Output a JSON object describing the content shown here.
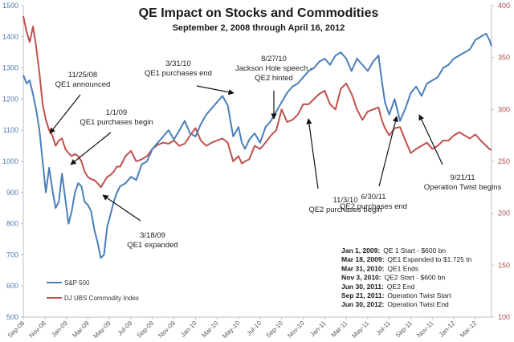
{
  "chart_data": {
    "type": "line",
    "title": "QE Impact on Stocks and Commodities",
    "subtitle": "September 2, 2008 through April 16, 2012",
    "xlabel": "",
    "ylabel_left": "",
    "ylabel_right": "",
    "x_ticks": [
      "Sep-08",
      "Nov-08",
      "Jan-09",
      "Mar-09",
      "May-09",
      "Jul-09",
      "Sep-09",
      "Nov-09",
      "Jan-10",
      "Mar-10",
      "May-10",
      "Jul-10",
      "Sep-10",
      "Nov-10",
      "Jan-11",
      "Mar-11",
      "May-11",
      "Jul-11",
      "Sep-11",
      "Nov-11",
      "Jan-12",
      "Mar-12"
    ],
    "x_range_months": [
      0,
      43.5
    ],
    "y_left": {
      "range": [
        500,
        1500
      ],
      "ticks": [
        500,
        600,
        700,
        800,
        900,
        1000,
        1100,
        1200,
        1300,
        1400,
        1500
      ]
    },
    "y_right": {
      "range": [
        100,
        400
      ],
      "ticks": [
        100,
        150,
        200,
        250,
        300,
        350,
        400
      ]
    },
    "grid": false,
    "legend_position": "bottom-left",
    "series": [
      {
        "name": "S&P 500",
        "axis": "left",
        "color": "#4a7ebb",
        "x_months": [
          0,
          0.3,
          0.6,
          0.9,
          1.2,
          1.5,
          1.8,
          2.1,
          2.4,
          2.7,
          3.0,
          3.3,
          3.6,
          3.9,
          4.2,
          4.5,
          4.8,
          5.1,
          5.4,
          5.7,
          6.0,
          6.3,
          6.6,
          6.9,
          7.2,
          7.5,
          7.8,
          8.1,
          8.4,
          8.7,
          9.0,
          9.5,
          10,
          10.5,
          11,
          11.5,
          12,
          12.5,
          13,
          13.5,
          14,
          14.5,
          15,
          15.5,
          16,
          16.5,
          17,
          17.5,
          18,
          18.5,
          19,
          19.5,
          20,
          20.3,
          20.6,
          21,
          21.5,
          22,
          22.5,
          23,
          23.5,
          24,
          24.5,
          25,
          25.5,
          26,
          26.5,
          27,
          27.5,
          28,
          28.5,
          29,
          29.5,
          30,
          30.5,
          31,
          31.5,
          32,
          32.5,
          33,
          33.3,
          33.6,
          34,
          34.5,
          35,
          35.5,
          36,
          36.5,
          37,
          37.5,
          38,
          38.5,
          39,
          39.5,
          40,
          40.5,
          41,
          41.5,
          42,
          42.5,
          43,
          43.3,
          43.5
        ],
        "values": [
          1277,
          1250,
          1260,
          1215,
          1165,
          1100,
          1000,
          900,
          980,
          910,
          850,
          870,
          960,
          880,
          800,
          840,
          900,
          930,
          920,
          870,
          860,
          840,
          780,
          740,
          690,
          700,
          790,
          830,
          870,
          900,
          920,
          930,
          950,
          940,
          990,
          1000,
          1040,
          1060,
          1080,
          1100,
          1070,
          1100,
          1130,
          1090,
          1080,
          1120,
          1150,
          1170,
          1190,
          1210,
          1180,
          1080,
          1110,
          1060,
          1040,
          1070,
          1090,
          1060,
          1110,
          1130,
          1160,
          1190,
          1220,
          1240,
          1250,
          1270,
          1290,
          1300,
          1320,
          1330,
          1310,
          1340,
          1350,
          1330,
          1290,
          1330,
          1310,
          1290,
          1320,
          1340,
          1260,
          1190,
          1150,
          1200,
          1130,
          1170,
          1220,
          1240,
          1210,
          1250,
          1260,
          1270,
          1300,
          1310,
          1330,
          1340,
          1350,
          1360,
          1390,
          1400,
          1410,
          1390,
          1370
        ],
        "annotations_note": "values approximate, read from chart"
      },
      {
        "name": "DJ UBS Commodity Index",
        "axis": "right",
        "color": "#c0504d",
        "x_months": [
          0,
          0.3,
          0.6,
          0.9,
          1.2,
          1.5,
          1.8,
          2.1,
          2.4,
          2.7,
          3.0,
          3.3,
          3.6,
          3.9,
          4.2,
          4.5,
          4.8,
          5.1,
          5.4,
          5.7,
          6.0,
          6.3,
          6.6,
          6.9,
          7.2,
          7.5,
          7.8,
          8.1,
          8.4,
          8.7,
          9.0,
          9.5,
          10,
          10.5,
          11,
          11.5,
          12,
          12.5,
          13,
          13.5,
          14,
          14.5,
          15,
          15.5,
          16,
          16.5,
          17,
          17.5,
          18,
          18.5,
          19,
          19.5,
          20,
          20.3,
          20.6,
          21,
          21.5,
          22,
          22.5,
          23,
          23.5,
          24,
          24.5,
          25,
          25.5,
          26,
          26.5,
          27,
          27.5,
          28,
          28.5,
          29,
          29.5,
          30,
          30.5,
          31,
          31.5,
          32,
          32.5,
          33,
          33.3,
          33.6,
          34,
          34.5,
          35,
          35.5,
          36,
          36.5,
          37,
          37.5,
          38,
          38.5,
          39,
          39.5,
          40,
          40.5,
          41,
          41.5,
          42,
          42.5,
          43,
          43.3,
          43.5
        ],
        "values": [
          390,
          375,
          365,
          380,
          360,
          335,
          305,
          290,
          280,
          275,
          265,
          270,
          272,
          262,
          258,
          255,
          257,
          255,
          250,
          240,
          235,
          233,
          232,
          229,
          225,
          230,
          235,
          237,
          240,
          245,
          245,
          255,
          260,
          250,
          252,
          255,
          262,
          266,
          268,
          267,
          270,
          265,
          267,
          275,
          282,
          270,
          265,
          268,
          270,
          272,
          268,
          250,
          255,
          248,
          250,
          252,
          265,
          262,
          268,
          275,
          280,
          300,
          288,
          290,
          295,
          305,
          305,
          310,
          315,
          318,
          305,
          300,
          320,
          325,
          315,
          300,
          290,
          298,
          300,
          302,
          290,
          282,
          275,
          282,
          283,
          270,
          258,
          262,
          265,
          268,
          262,
          265,
          270,
          270,
          275,
          278,
          275,
          272,
          276,
          270,
          265,
          262,
          261
        ]
      }
    ],
    "annotations": [
      {
        "date": "11/25/08",
        "text": "QE1 announced",
        "series": "DJ UBS Commodity Index",
        "x_months": 2.75
      },
      {
        "date": "1/1/09",
        "text": "QE1 purchases begin",
        "series": "DJ UBS Commodity Index",
        "x_months": 4.0
      },
      {
        "date": "3/18/09",
        "text": "QE1 expanded",
        "series": "S&P 500",
        "x_months": 6.5
      },
      {
        "date": "3/31/10",
        "text": "QE1 purchases end",
        "series": "S&P 500",
        "x_months": 19.0
      },
      {
        "date": "8/27/10",
        "text": "Jackson Hole speech - QE2 hinted",
        "series": "S&P 500",
        "x_months": 23.8
      },
      {
        "date": "11/3/10",
        "text": "QE2 purchases begin",
        "series": "DJ UBS Commodity Index",
        "x_months": 26.0
      },
      {
        "date": "6/30/11",
        "text": "QE2 purchases end",
        "series": "DJ UBS Commodity Index",
        "x_months": 33.9
      },
      {
        "date": "9/21/11",
        "text": "Operation Twist begins",
        "series": "DJ UBS Commodity Index",
        "x_months": 36.6
      }
    ],
    "timeline_box": [
      {
        "date": "Jan 1, 2009:",
        "text": "QE 1 Start - $600 bn"
      },
      {
        "date": "Mar 18, 2009:",
        "text": "QE1 Expanded to $1.725  tn"
      },
      {
        "date": "Mar 31, 2010:",
        "text": "QE1 Ends"
      },
      {
        "date": "Nov 3, 2010:",
        "text": "QE2 Start - $600 bn"
      },
      {
        "date": "Jun 30, 2011:",
        "text": "QE2 End"
      },
      {
        "date": "Sep 21, 2011:",
        "text": "Operation Twist Start"
      },
      {
        "date": "Jun 30, 2012:",
        "text": "Operation Twist End"
      }
    ]
  }
}
